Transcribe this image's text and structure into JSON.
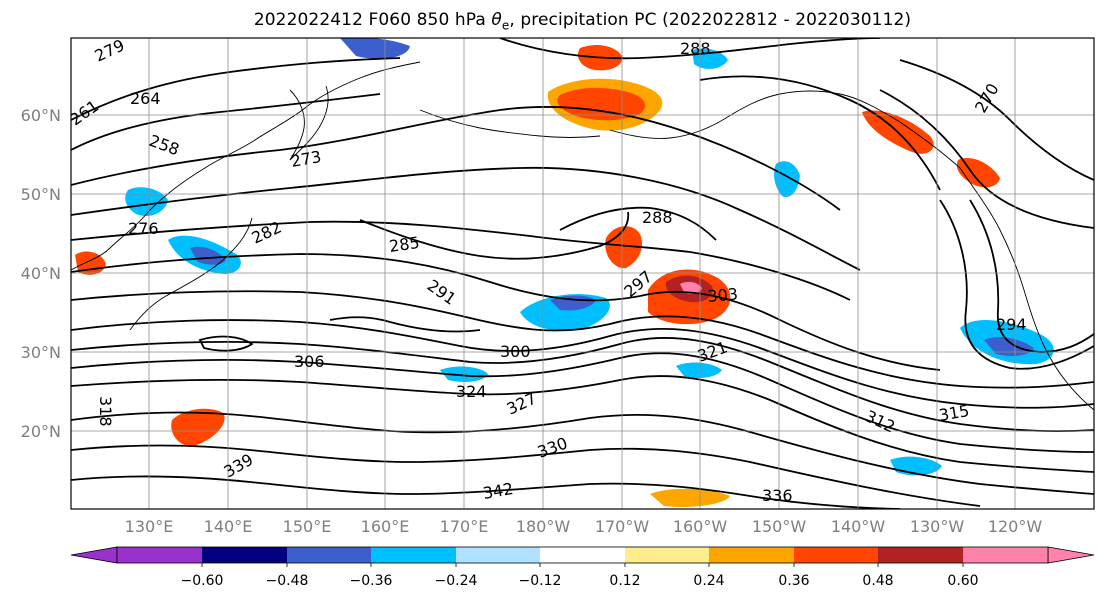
{
  "title": {
    "prefix": "2022022412 F060 850 hPa ",
    "theta": "θ",
    "sub": "e",
    "suffix": ", precipitation PC (2022022812 - 2022030112)"
  },
  "map": {
    "lat_ticks": [
      "60°N",
      "50°N",
      "40°N",
      "30°N",
      "20°N"
    ],
    "lon_ticks": [
      "130°E",
      "140°E",
      "150°E",
      "160°E",
      "170°E",
      "180°W",
      "170°W",
      "160°W",
      "150°W",
      "140°W",
      "130°W",
      "120°W"
    ],
    "contour_labels": [
      "279",
      "264",
      "261",
      "258",
      "273",
      "276",
      "282",
      "285",
      "288",
      "291",
      "297",
      "303",
      "306",
      "300",
      "324",
      "327",
      "321",
      "318",
      "330",
      "339",
      "342",
      "336",
      "315",
      "312",
      "294",
      "270",
      "288"
    ],
    "colors": {
      "neg_060": "#9932cc",
      "neg_048": "#000080",
      "neg_036": "#3c5fcd",
      "neg_024": "#00bfff",
      "neg_012": "#b0e2ff",
      "zero": "#ffffff",
      "pos_012": "#ffec8b",
      "pos_024": "#ffa500",
      "pos_036": "#ff4500",
      "pos_048": "#b22222",
      "pos_060": "#ff82ab"
    }
  },
  "colorbar": {
    "labels": [
      "−0.60",
      "−0.48",
      "−0.36",
      "−0.24",
      "−0.12",
      "0.12",
      "0.24",
      "0.36",
      "0.48",
      "0.60"
    ],
    "colors": [
      "#9932cc",
      "#000080",
      "#3c5fcd",
      "#00bfff",
      "#b0e2ff",
      "#ffffff",
      "#ffec8b",
      "#ffa500",
      "#ff4500",
      "#b22222",
      "#ff82ab"
    ]
  }
}
